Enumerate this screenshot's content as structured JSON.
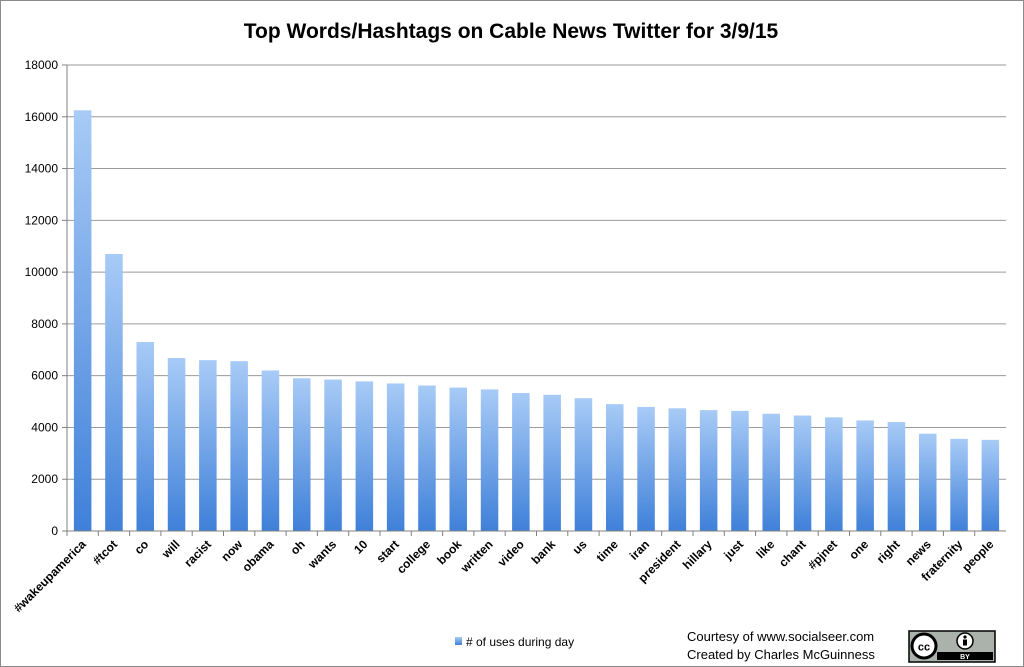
{
  "chart_data": {
    "type": "bar",
    "title": "Top Words/Hashtags on Cable News Twitter for 3/9/15",
    "xlabel": "",
    "ylabel": "",
    "ylim": [
      0,
      18000
    ],
    "yticks": [
      0,
      2000,
      4000,
      6000,
      8000,
      10000,
      12000,
      14000,
      16000,
      18000
    ],
    "grid": true,
    "legend_position": "bottom",
    "categories": [
      "#wakeupamerica",
      "#tcot",
      "co",
      "will",
      "racist",
      "now",
      "obama",
      "oh",
      "wants",
      "10",
      "start",
      "college",
      "book",
      "written",
      "video",
      "bank",
      "us",
      "time",
      "iran",
      "president",
      "hillary",
      "just",
      "like",
      "chant",
      "#pjnet",
      "one",
      "right",
      "news",
      "fraternity",
      "people"
    ],
    "series": [
      {
        "name": "# of uses during day",
        "color": "#5b93e0",
        "values": [
          16250,
          10700,
          7300,
          6680,
          6600,
          6560,
          6200,
          5900,
          5850,
          5780,
          5700,
          5620,
          5540,
          5470,
          5330,
          5260,
          5130,
          4900,
          4790,
          4740,
          4670,
          4640,
          4530,
          4460,
          4390,
          4270,
          4210,
          3760,
          3560,
          3520
        ]
      }
    ]
  },
  "credits": {
    "line1": "Courtesy of www.socialseer.com",
    "line2": "Created by Charles McGuinness"
  },
  "license_badge": {
    "name": "cc-by-badge",
    "text": "BY"
  }
}
